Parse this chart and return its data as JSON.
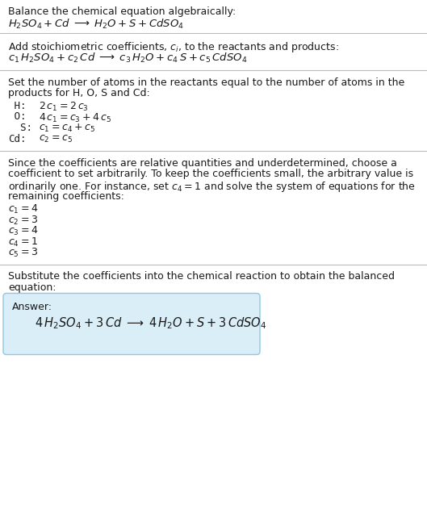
{
  "bg_color": "#ffffff",
  "text_color": "#1a1a1a",
  "divider_color": "#bbbbbb",
  "answer_box_color": "#daeef8",
  "answer_box_border": "#90c8e0",
  "font_size_body": 9.0,
  "font_size_eq": 9.5,
  "font_size_ans_label": 9.0,
  "font_size_ans_eq": 10.5,
  "sections": [
    {
      "type": "text+eq",
      "title": "Balance the chemical equation algebraically:",
      "eq": "H_{2}SO_{4} + Cd  \\longrightarrow  H_{2}O + S + CdSO_{4}"
    },
    {
      "type": "text+eq",
      "title": "Add stoichiometric coefficients, $c_i$, to the reactants and products:",
      "eq": "c_1\\, H_{2}SO_{4} + c_2\\, Cd  \\longrightarrow  c_3\\, H_{2}O + c_4\\, S + c_5\\, CdSO_{4}"
    },
    {
      "type": "balances",
      "title1": "Set the number of atoms in the reactants equal to the number of atoms in the",
      "title2": "products for H, O, S and Cd:",
      "rows": [
        [
          " H:",
          "2\\,c_1 = 2\\,c_3"
        ],
        [
          " O:",
          "4\\,c_1 = c_3 + 4\\,c_5"
        ],
        [
          "  S:",
          "c_1 = c_4 + c_5"
        ],
        [
          "Cd:",
          "c_2 = c_5"
        ]
      ]
    },
    {
      "type": "solve",
      "title": [
        "Since the coefficients are relative quantities and underdetermined, choose a",
        "coefficient to set arbitrarily. To keep the coefficients small, the arbitrary value is",
        "ordinarily one. For instance, set $c_4 = 1$ and solve the system of equations for the",
        "remaining coefficients:"
      ],
      "coeffs": [
        "c_1 = 4",
        "c_2 = 3",
        "c_3 = 4",
        "c_4 = 1",
        "c_5 = 3"
      ]
    },
    {
      "type": "answer",
      "title1": "Substitute the coefficients into the chemical reaction to obtain the balanced",
      "title2": "equation:",
      "ans_label": "Answer:",
      "ans_eq": "4\\,H_{2}SO_{4} + 3\\,Cd  \\longrightarrow  4\\,H_{2}O + S + 3\\,CdSO_{4}"
    }
  ]
}
